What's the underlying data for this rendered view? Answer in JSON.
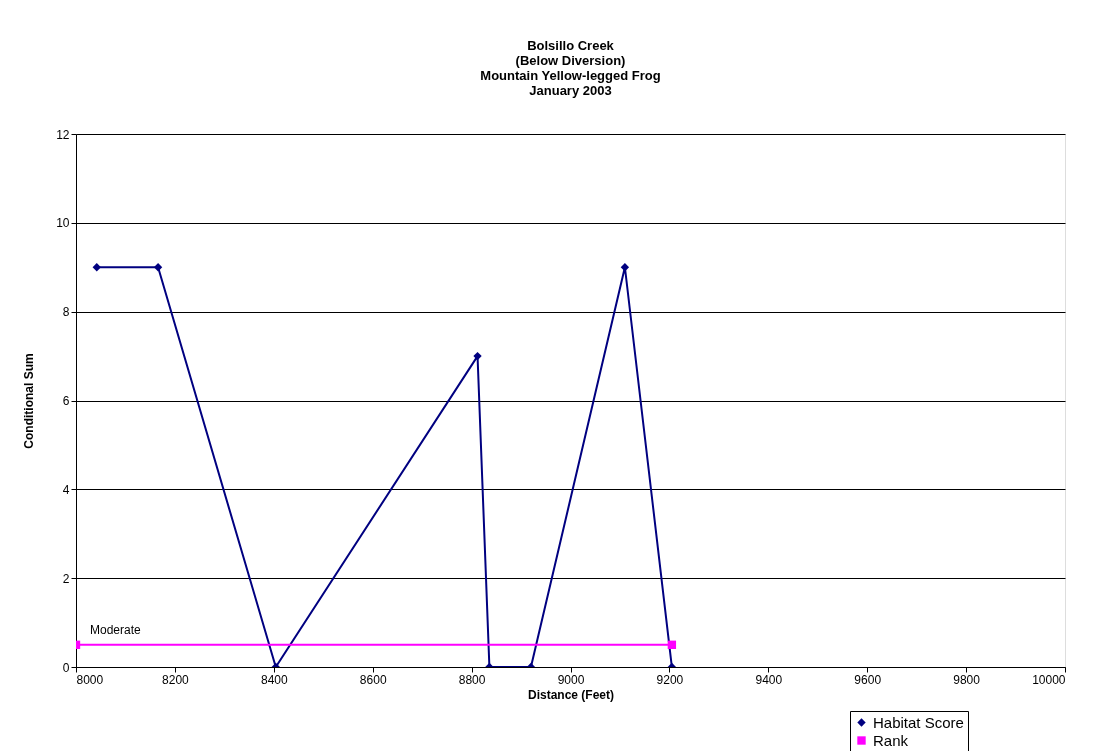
{
  "chart_data": {
    "type": "line",
    "title": [
      "Bolsillo Creek",
      "(Below Diversion)",
      "Mountain Yellow-legged Frog",
      "January 2003"
    ],
    "xlabel": "Distance (Feet)",
    "ylabel": "Conditional Sum",
    "series": [
      {
        "name": "Habitat Score",
        "color": "#000080",
        "marker": "diamond",
        "x": [
          8042,
          8166,
          8404,
          8812,
          8836,
          8920,
          9110,
          9205
        ],
        "values": [
          9,
          9,
          0,
          7,
          0,
          0,
          9,
          0
        ]
      },
      {
        "name": "Rank",
        "color": "#ff00ff",
        "marker": "square",
        "x": [
          8000,
          9205
        ],
        "values": [
          0.5,
          0.5
        ]
      }
    ],
    "annotations": [
      "Moderate"
    ],
    "xlim": [
      8000,
      10000
    ],
    "xticks": [
      8000,
      8200,
      8400,
      8600,
      8800,
      9000,
      9200,
      9400,
      9600,
      9800,
      10000
    ],
    "ylim": [
      0,
      12
    ],
    "yticks": [
      0,
      2,
      4,
      6,
      8,
      10,
      12
    ],
    "grid": "y",
    "legend": "bottom right",
    "line_style": "solid"
  }
}
